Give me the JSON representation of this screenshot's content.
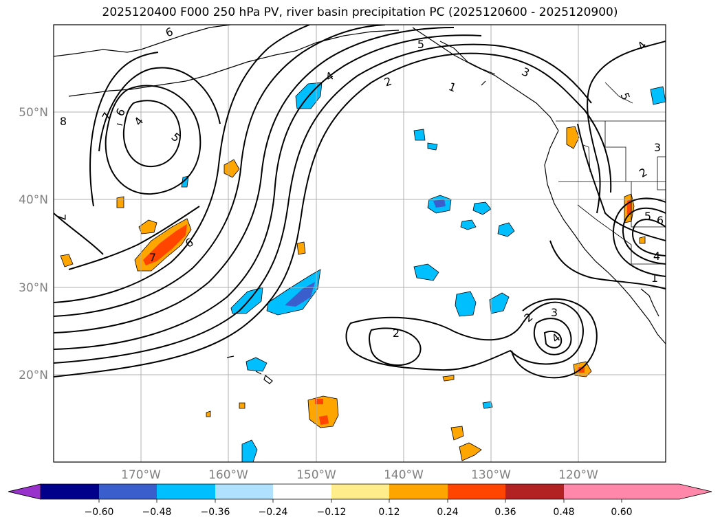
{
  "title": "2025120400 F000 250 hPa PV, river basin precipitation PC (2025120600 - 2025120900)",
  "latitude_labels": [
    "50°N",
    "40°N",
    "30°N",
    "20°N"
  ],
  "longitude_labels": [
    "170°W",
    "160°W",
    "150°W",
    "140°W",
    "130°W",
    "120°W"
  ],
  "colorbar": {
    "ticks": [
      "−0.60",
      "−0.48",
      "−0.36",
      "−0.24",
      "−0.12",
      "0.12",
      "0.24",
      "0.36",
      "0.48",
      "0.60"
    ],
    "colors": [
      "#9932cc",
      "#00008b",
      "#3a5fcd",
      "#00bfff",
      "#b0e2ff",
      "#ffffff",
      "#ffec8b",
      "#ffa500",
      "#ff4500",
      "#b22222",
      "#ff88aa"
    ]
  },
  "contour_labels": [
    "6",
    "7",
    "8",
    "6",
    "4",
    "5",
    "7",
    "6",
    "4",
    "5",
    "2",
    "1",
    "3",
    "5",
    "4",
    "2",
    "3",
    "4",
    "2",
    "3",
    "2",
    "5",
    "6",
    "4",
    "1"
  ],
  "colors": {
    "contour": "#000000",
    "grid": "#b0b0b0",
    "label": "#808080"
  }
}
